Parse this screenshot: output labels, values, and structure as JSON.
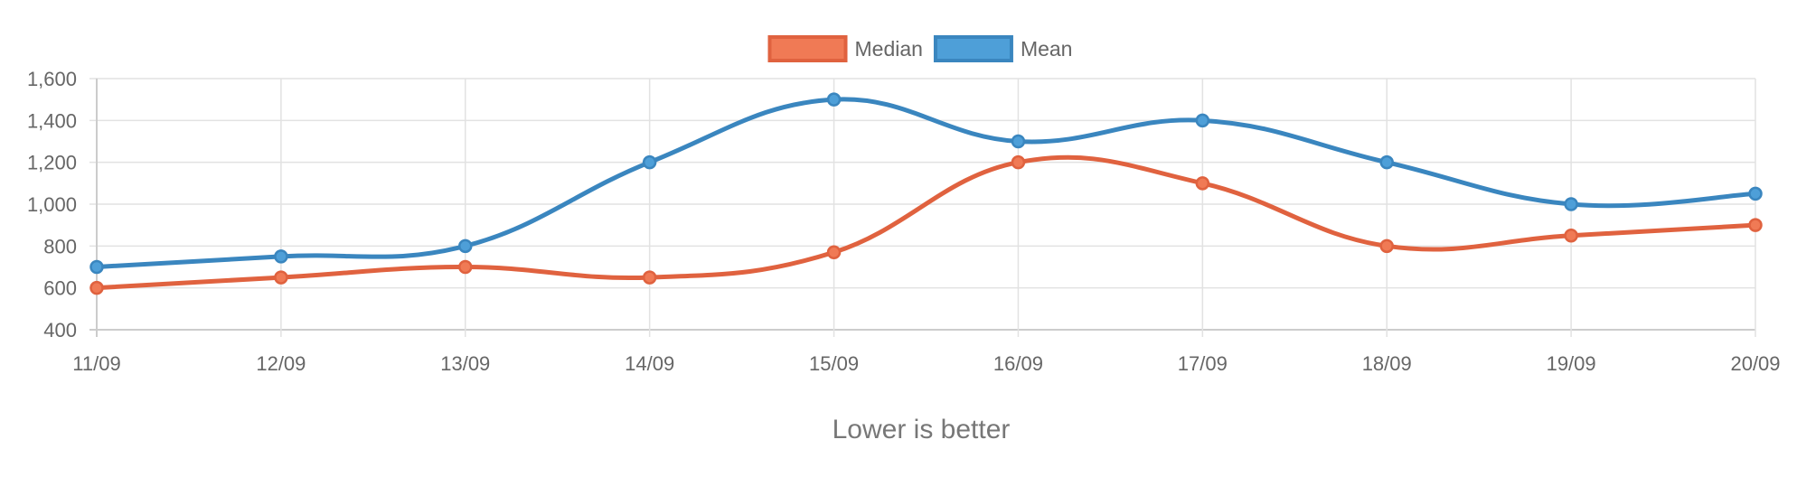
{
  "chart_data": {
    "type": "line",
    "categories": [
      "11/09",
      "12/09",
      "13/09",
      "14/09",
      "15/09",
      "16/09",
      "17/09",
      "18/09",
      "19/09",
      "20/09"
    ],
    "series": [
      {
        "name": "Median",
        "color": "#e0623f",
        "fill": "#f07a55",
        "values": [
          600,
          650,
          700,
          650,
          770,
          1200,
          1100,
          800,
          850,
          900
        ]
      },
      {
        "name": "Mean",
        "color": "#3a86bf",
        "fill": "#4e9fd8",
        "values": [
          700,
          750,
          800,
          1200,
          1500,
          1300,
          1400,
          1200,
          1000,
          1050
        ]
      }
    ],
    "ylim": [
      400,
      1600
    ],
    "yticks": [
      400,
      600,
      800,
      1000,
      1200,
      1400,
      1600
    ],
    "ytick_labels": [
      "400",
      "600",
      "800",
      "1,000",
      "1,200",
      "1,400",
      "1,600"
    ],
    "grid": true,
    "legend": "top-center",
    "footer": "Lower is better"
  }
}
